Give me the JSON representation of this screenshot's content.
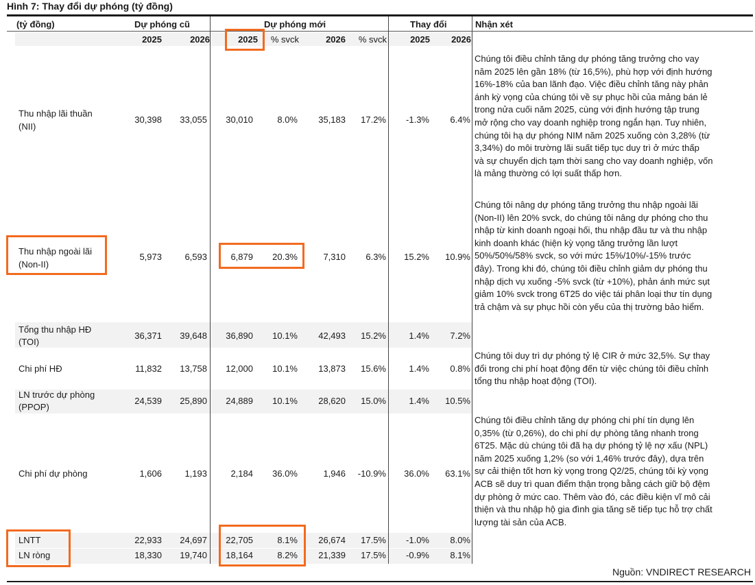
{
  "figure_title": "Hình 7: Thay đổi dự phóng (tỷ đồng)",
  "header": {
    "unit_label": "(tỷ đồng)",
    "group_old": "Dự phóng cũ",
    "group_new": "Dự phóng mới",
    "group_change": "Thay đổi",
    "group_comment": "Nhận xét",
    "sub_2025": "2025",
    "sub_2026": "2026",
    "sub_yoy": "% svck"
  },
  "rows": [
    {
      "label": [
        "Thu nhập lãi thuần",
        "(NII)"
      ],
      "old_2025": "30,398",
      "old_2026": "33,055",
      "new_2025": "30,010",
      "new_2025_yoy": "8.0%",
      "new_2026": "35,183",
      "new_2026_yoy": "17.2%",
      "chg_2025": "-1.3%",
      "chg_2026": "6.4%"
    },
    {
      "label": [
        "Thu nhập ngoài lãi",
        "(Non-II)"
      ],
      "old_2025": "5,973",
      "old_2026": "6,593",
      "new_2025": "6,879",
      "new_2025_yoy": "20.3%",
      "new_2026": "7,310",
      "new_2026_yoy": "6.3%",
      "chg_2025": "15.2%",
      "chg_2026": "10.9%"
    },
    {
      "label": [
        "Tổng thu nhập HĐ",
        "(TOI)"
      ],
      "old_2025": "36,371",
      "old_2026": "39,648",
      "new_2025": "36,890",
      "new_2025_yoy": "10.1%",
      "new_2026": "42,493",
      "new_2026_yoy": "15.2%",
      "chg_2025": "1.4%",
      "chg_2026": "7.2%"
    },
    {
      "label": [
        "Chi phí HĐ"
      ],
      "old_2025": "11,832",
      "old_2026": "13,758",
      "new_2025": "12,000",
      "new_2025_yoy": "10.1%",
      "new_2026": "13,873",
      "new_2026_yoy": "15.6%",
      "chg_2025": "1.4%",
      "chg_2026": "0.8%"
    },
    {
      "label": [
        "LN trước dự phòng",
        "(PPOP)"
      ],
      "old_2025": "24,539",
      "old_2026": "25,890",
      "new_2025": "24,889",
      "new_2025_yoy": "10.1%",
      "new_2026": "28,620",
      "new_2026_yoy": "15.0%",
      "chg_2025": "1.4%",
      "chg_2026": "10.5%"
    },
    {
      "label": [
        "Chi phí dự phòng"
      ],
      "old_2025": "1,606",
      "old_2026": "1,193",
      "new_2025": "2,184",
      "new_2025_yoy": "36.0%",
      "new_2026": "1,946",
      "new_2026_yoy": "-10.9%",
      "chg_2025": "36.0%",
      "chg_2026": "63.1%"
    },
    {
      "label": [
        "LNTT"
      ],
      "old_2025": "22,933",
      "old_2026": "24,697",
      "new_2025": "22,705",
      "new_2025_yoy": "8.1%",
      "new_2026": "26,674",
      "new_2026_yoy": "17.5%",
      "chg_2025": "-1.0%",
      "chg_2026": "8.0%"
    },
    {
      "label": [
        "LN ròng"
      ],
      "old_2025": "18,330",
      "old_2026": "19,740",
      "new_2025": "18,164",
      "new_2025_yoy": "8.2%",
      "new_2026": "21,339",
      "new_2026_yoy": "17.5%",
      "chg_2025": "-0.9%",
      "chg_2026": "8.1%"
    }
  ],
  "notes": {
    "nii": [
      "Chúng tôi điều chỉnh tăng dự phóng tăng trưởng cho vay",
      "năm 2025 lên gần 18% (từ 16,5%), phù hợp với định hướng",
      "16%-18% của ban lãnh đạo. Việc điều chỉnh tăng này phản",
      "ánh kỳ vọng của chúng tôi về sự phục hồi của mảng bán lẻ",
      "trong nửa cuối năm 2025, cùng với định hướng tập trung",
      "mở rộng cho vay doanh nghiệp trong ngắn hạn. Tuy nhiên,",
      "chúng tôi hạ dự phóng NIM năm 2025 xuống còn 3,28% (từ",
      "3,34%) do môi trường lãi suất tiếp tục duy trì ở mức thấp",
      "và sự chuyển dịch tạm thời sang cho vay doanh nghiệp, vốn",
      "là mảng thường có lợi suất thấp hơn."
    ],
    "non_ii": [
      "Chúng tôi nâng dự phóng tăng trưởng thu nhập ngoài lãi",
      "(Non-II) lên 20% svck, do chúng tôi nâng dự phóng cho thu",
      "nhập từ kinh doanh ngoại hối, thu nhập đầu tư và thu nhập",
      "kinh doanh khác (hiện kỳ vọng tăng trưởng lần lượt",
      "50%/50%/58% svck, so với mức 15%/10%/-15% trước",
      "đây). Trong khi đó, chúng tôi điều chỉnh giảm dự phóng thu",
      "nhập dịch vụ xuống -5% svck (từ +10%), phản ánh mức sụt",
      "giảm 10% svck trong 6T25 do việc tái phân loại thư tín dụng",
      "trả chậm và sự phục hồi còn yếu của thị trường bảo hiểm."
    ],
    "opex": [
      "Chúng tôi duy trì dự phóng tỷ lệ CIR ở mức 32,5%. Sự thay",
      "đổi trong chi phí hoạt động đến từ việc chúng tôi điều chỉnh",
      "tổng thu nhập hoạt động (TOI)."
    ],
    "provision": [
      "Chúng tôi điều chỉnh tăng dự phóng chi phí tín dụng lên",
      "0,35% (từ 0,26%), do chi phí dự phòng tăng nhanh trong",
      "6T25. Mặc dù chúng tôi đã hạ dự phóng tỷ lệ nợ xấu (NPL)",
      "năm 2025 xuống 1,2% (so với 1,46% trước đây), dựa trên",
      "sự cải thiện tốt hơn kỳ vọng trong Q2/25, chúng tôi kỳ vọng",
      "ACB sẽ duy trì quan điểm thận trọng bằng cách giữ bộ đệm",
      "dự phòng ở mức cao. Thêm vào đó, các điều kiện vĩ mô cải",
      "thiện và thu nhập hộ gia đình gia tăng sẽ tiếp tục hỗ trợ chất",
      "lượng tài sản của ACB."
    ]
  },
  "source": "Nguồn: VNDIRECT RESEARCH",
  "highlight_color": "#f26a1f"
}
